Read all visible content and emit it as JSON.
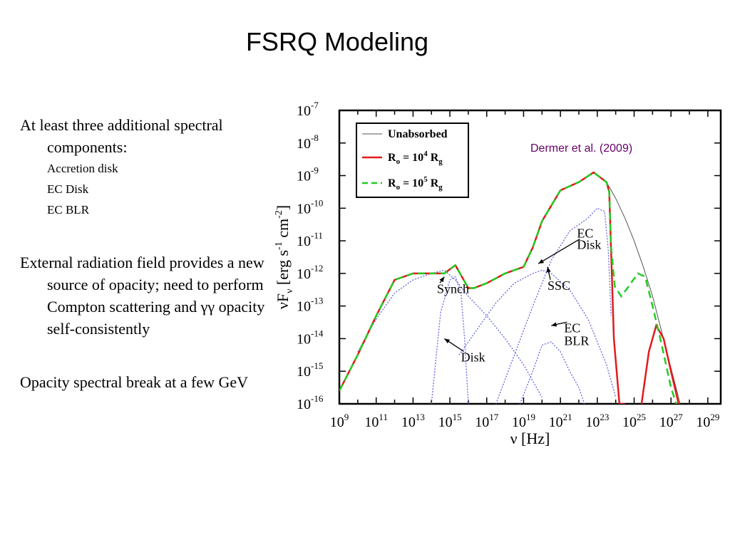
{
  "slide": {
    "title": "FSRQ Modeling",
    "bullets": [
      {
        "text": "At least three additional spectral components:",
        "sub": [
          "Accretion disk",
          "EC Disk",
          "EC BLR"
        ]
      },
      {
        "text": "External radiation field provides a new source of opacity; need to perform Compton scattering and γγ opacity self-consistently"
      },
      {
        "text": "Opacity spectral break at a few GeV"
      }
    ]
  },
  "chart_data": {
    "type": "line",
    "title": "",
    "xlabel": "ν [Hz]",
    "ylabel": "νF_ν [erg s^-1 cm^-2]",
    "xscale": "log",
    "yscale": "log",
    "xlim_log10": [
      9,
      29.7
    ],
    "ylim_log10": [
      -16,
      -7
    ],
    "xticks_exp": [
      9,
      11,
      13,
      15,
      17,
      19,
      21,
      23,
      25,
      27,
      29
    ],
    "yticks_exp": [
      -16,
      -15,
      -14,
      -13,
      -12,
      -11,
      -10,
      -9,
      -8,
      -7
    ],
    "credit": "Dermer et al. (2009)",
    "colors": {
      "unabsorbed": "#555555",
      "r1e4": "#e31a1c",
      "r1e5": "#22cc22",
      "components": "#6666dd",
      "credit": "#660066"
    },
    "legend": {
      "position": "top-left",
      "entries": [
        {
          "label": "Unabsorbed",
          "style": "thin-black"
        },
        {
          "label": "R",
          "sub": "o",
          "mid": " = 10",
          "sup": "4",
          "end": " R",
          "sub2": "g",
          "style": "red-solid"
        },
        {
          "label": "R",
          "sub": "o",
          "mid": " = 10",
          "sup": "5",
          "end": " R",
          "sub2": "g",
          "style": "green-dashed"
        }
      ]
    },
    "annotations": [
      {
        "text": "Synch",
        "x": 14.3,
        "y": -12.6,
        "arrow_to": [
          14.7,
          -12.1
        ]
      },
      {
        "text": "Disk",
        "x": 15.6,
        "y": -14.7,
        "arrow_to": [
          14.7,
          -14.0
        ]
      },
      {
        "text": "EC",
        "x": 21.9,
        "y": -10.9
      },
      {
        "text": "Disk",
        "x": 21.9,
        "y": -11.25,
        "arrow_to": [
          19.8,
          -11.7
        ]
      },
      {
        "text": "SSC",
        "x": 20.3,
        "y": -12.5,
        "arrow_to": [
          20.3,
          -11.8
        ]
      },
      {
        "text": "EC",
        "x": 21.2,
        "y": -13.8,
        "arrow_to": [
          20.5,
          -13.6
        ]
      },
      {
        "text": "BLR",
        "x": 21.2,
        "y": -14.2
      }
    ],
    "series": [
      {
        "name": "Unabsorbed",
        "x": [
          9,
          10,
          11,
          12,
          13,
          14,
          14.7,
          15.3,
          16,
          16.3,
          17,
          18,
          19,
          19.5,
          20,
          21,
          22,
          22.8,
          23.5,
          24,
          24.5,
          25,
          25.5,
          26,
          26.5,
          27,
          27.5
        ],
        "y": [
          -15.6,
          -14.5,
          -13.3,
          -12.2,
          -12.0,
          -12.0,
          -12.0,
          -11.75,
          -12.45,
          -12.45,
          -12.3,
          -12.0,
          -11.8,
          -11.2,
          -10.4,
          -9.45,
          -9.2,
          -8.9,
          -9.2,
          -9.7,
          -10.3,
          -11.0,
          -11.8,
          -12.7,
          -13.8,
          -14.9,
          -16.0
        ]
      },
      {
        "name": "R_o = 10^4 R_g",
        "x": [
          9,
          10,
          11,
          12,
          13,
          14,
          14.7,
          15.3,
          16,
          16.3,
          17,
          18,
          19,
          19.5,
          20,
          21,
          22,
          22.8,
          23.5,
          23.65,
          23.9,
          24.2,
          24.5
        ],
        "y": [
          -15.6,
          -14.5,
          -13.3,
          -12.2,
          -12.0,
          -12.0,
          -12.0,
          -11.75,
          -12.45,
          -12.45,
          -12.3,
          -12.0,
          -11.8,
          -11.2,
          -10.4,
          -9.45,
          -9.2,
          -8.9,
          -9.2,
          -9.5,
          -14.0,
          -16.0,
          -16.0
        ],
        "x2": [
          25.4,
          25.8,
          26.2,
          26.6,
          27.0,
          27.5
        ],
        "y2": [
          -16.0,
          -14.4,
          -13.6,
          -14.0,
          -15.0,
          -16.2
        ]
      },
      {
        "name": "R_o = 10^5 R_g",
        "x": [
          9,
          10,
          11,
          12,
          13,
          14,
          14.7,
          15.3,
          16,
          16.3,
          17,
          18,
          19,
          19.5,
          20,
          21,
          22,
          22.8,
          23.5,
          23.65,
          23.75,
          23.95,
          24.3,
          24.7,
          25.2,
          25.6,
          26.0,
          26.5,
          27.0,
          27.4
        ],
        "y": [
          -15.6,
          -14.5,
          -13.3,
          -12.2,
          -12.0,
          -12.0,
          -12.0,
          -11.75,
          -12.45,
          -12.45,
          -12.3,
          -12.0,
          -11.8,
          -11.2,
          -10.4,
          -9.45,
          -9.2,
          -8.9,
          -9.2,
          -9.5,
          -11.2,
          -12.4,
          -12.7,
          -12.4,
          -12.0,
          -12.1,
          -13.0,
          -14.2,
          -15.5,
          -16.2
        ]
      },
      {
        "name": "Synch",
        "x": [
          10,
          11,
          12,
          13,
          14,
          14.7,
          15.3,
          16,
          17,
          18,
          19,
          20
        ],
        "y": [
          -14.4,
          -13.4,
          -12.6,
          -12.2,
          -12.0,
          -11.9,
          -12.2,
          -12.7,
          -13.3,
          -14.0,
          -14.8,
          -15.8
        ]
      },
      {
        "name": "Disk",
        "x": [
          14.0,
          14.5,
          15.0,
          15.3,
          15.6,
          15.8,
          16.0
        ],
        "y": [
          -16.0,
          -13.2,
          -12.2,
          -12.1,
          -12.6,
          -14.0,
          -16.0
        ]
      },
      {
        "name": "SSC",
        "x": [
          15.5,
          16.5,
          17.5,
          18.5,
          19.5,
          20.0,
          20.5,
          21.5,
          22.5,
          23.5,
          24.0
        ],
        "y": [
          -14.5,
          -13.7,
          -12.9,
          -12.3,
          -12.0,
          -11.9,
          -12.0,
          -12.5,
          -13.4,
          -14.8,
          -15.8
        ]
      },
      {
        "name": "EC Disk",
        "x": [
          17.5,
          18.5,
          19.5,
          20.5,
          21.5,
          22.5,
          23.0,
          23.4,
          23.6,
          23.75
        ],
        "y": [
          -16.0,
          -14.5,
          -13.0,
          -11.6,
          -10.7,
          -10.3,
          -10.0,
          -10.1,
          -11.3,
          -13.3
        ]
      },
      {
        "name": "EC BLR",
        "x": [
          18.8,
          19.5,
          20.0,
          20.5,
          21.0,
          21.5,
          22.0,
          22.3
        ],
        "y": [
          -16.0,
          -15.0,
          -14.2,
          -14.1,
          -14.4,
          -15.0,
          -15.5,
          -16.0
        ]
      }
    ]
  }
}
